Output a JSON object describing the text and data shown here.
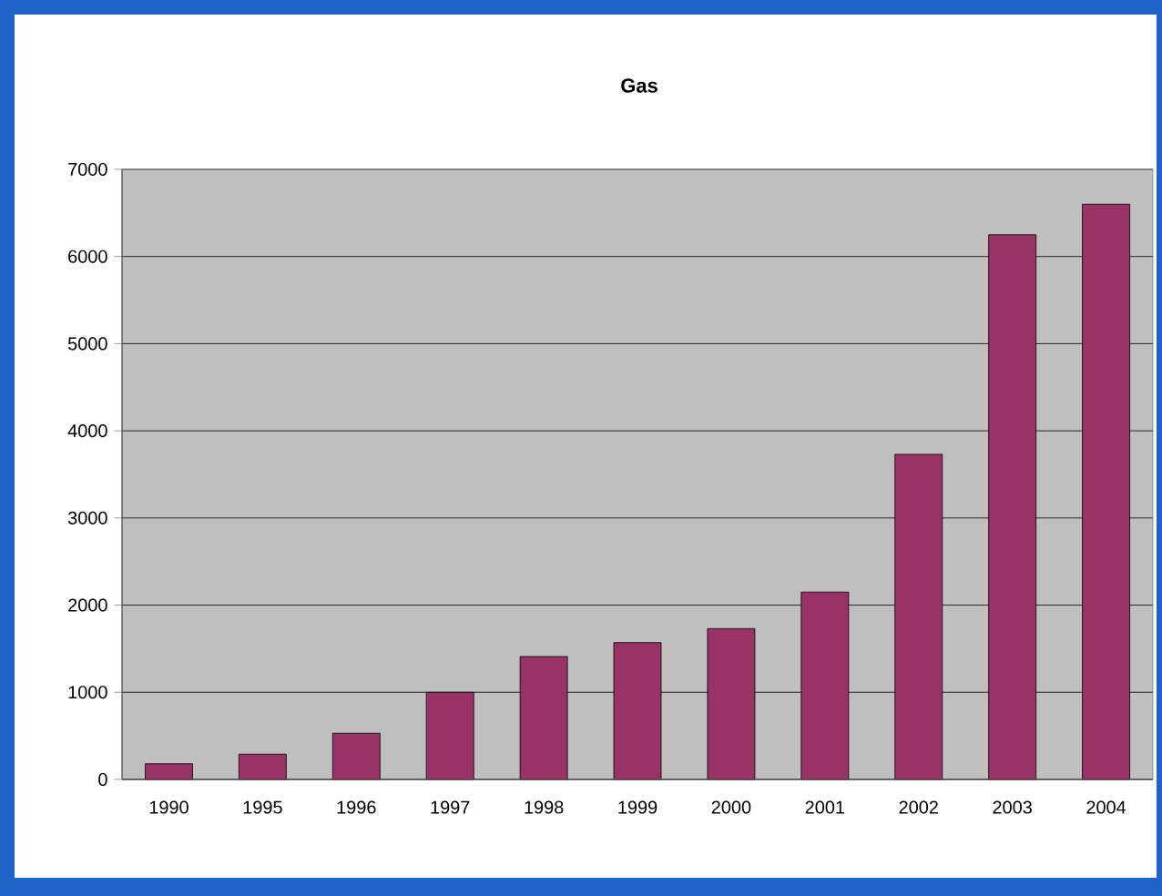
{
  "chart_data": {
    "type": "bar",
    "title": "**Gas**",
    "categories": [
      "1990",
      "1995",
      "1996",
      "1997",
      "1998",
      "1999",
      "2000",
      "2001",
      "2002",
      "2003",
      "2004"
    ],
    "values": [
      180,
      290,
      530,
      1000,
      1410,
      1570,
      1730,
      2150,
      3730,
      6250,
      6600
    ],
    "color": "#993366",
    "ylim": [
      0,
      7000
    ],
    "yticks": [
      0,
      1000,
      2000,
      3000,
      4000,
      5000,
      6000,
      7000
    ],
    "grid": "y"
  }
}
